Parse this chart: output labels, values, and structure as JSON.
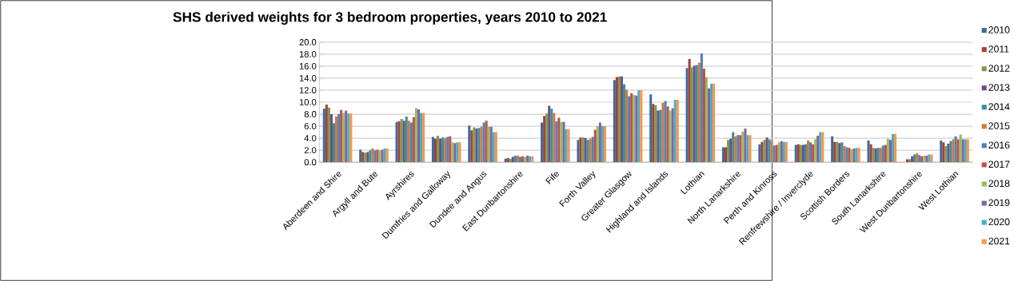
{
  "chart_data": {
    "type": "bar",
    "title": "SHS derived weights for 3 bedroom properties, years 2010 to 2021",
    "categories": [
      "Aberdeen and Shire",
      "Argyll and Bute",
      "Ayrshires",
      "Dumfries and Galloway",
      "Dundee and Angus",
      "East Dunbartonshire",
      "Fife",
      "Forth Valley",
      "Greater Glasgow",
      "Highland and Islands",
      "Lothian",
      "North Lanarkshire",
      "Perth and Kinross",
      "Renfrewshire / Inverclyde",
      "Scottish Borders",
      "South Lanarkshire",
      "West Dunbartonshire",
      "West Lothian"
    ],
    "series": [
      {
        "name": "2010",
        "color": "#3d6aa0",
        "values": [
          8.9,
          2.1,
          6.7,
          4.2,
          6.1,
          0.6,
          6.6,
          3.7,
          13.7,
          11.3,
          15.7,
          2.5,
          3.0,
          2.9,
          4.3,
          3.6,
          null,
          3.6
        ]
      },
      {
        "name": "2011",
        "color": "#a33f3c",
        "values": [
          9.6,
          1.7,
          6.8,
          3.9,
          5.3,
          0.7,
          7.7,
          4.1,
          14.2,
          9.7,
          17.2,
          2.5,
          3.4,
          3.0,
          3.4,
          3.0,
          0.5,
          3.3
        ]
      },
      {
        "name": "2012",
        "color": "#7f9a48",
        "values": [
          9.1,
          1.6,
          7.2,
          4.4,
          5.8,
          0.6,
          8.1,
          4.1,
          14.3,
          9.5,
          15.8,
          3.7,
          3.7,
          2.9,
          3.4,
          2.4,
          0.5,
          2.7
        ]
      },
      {
        "name": "2013",
        "color": "#695185",
        "values": [
          8.0,
          1.7,
          6.9,
          3.9,
          5.6,
          0.9,
          9.4,
          4.0,
          14.3,
          8.6,
          16.1,
          3.9,
          4.1,
          2.9,
          3.2,
          2.3,
          1.0,
          3.1
        ]
      },
      {
        "name": "2014",
        "color": "#3c8da3",
        "values": [
          6.5,
          2.0,
          7.6,
          4.1,
          5.7,
          1.1,
          8.9,
          3.7,
          13.0,
          8.7,
          16.2,
          5.0,
          3.8,
          3.0,
          3.3,
          2.4,
          1.3,
          3.5
        ]
      },
      {
        "name": "2015",
        "color": "#cc7b38",
        "values": [
          7.6,
          2.3,
          6.9,
          4.0,
          5.9,
          1.1,
          8.2,
          3.9,
          12.1,
          9.9,
          16.6,
          4.3,
          3.5,
          3.6,
          2.7,
          2.4,
          1.5,
          3.8
        ]
      },
      {
        "name": "2016",
        "color": "#4f81bd",
        "values": [
          8.0,
          2.0,
          6.6,
          4.2,
          6.6,
          0.9,
          6.8,
          4.2,
          11.0,
          10.2,
          18.1,
          4.5,
          2.8,
          3.3,
          2.5,
          2.8,
          1.2,
          4.3
        ]
      },
      {
        "name": "2017",
        "color": "#c0504d",
        "values": [
          8.7,
          2.1,
          7.5,
          4.3,
          6.9,
          1.0,
          7.4,
          5.4,
          11.5,
          9.3,
          15.6,
          4.5,
          2.9,
          3.0,
          2.4,
          2.9,
          1.0,
          3.8
        ]
      },
      {
        "name": "2018",
        "color": "#9bbb59",
        "values": [
          8.2,
          2.0,
          9.0,
          3.3,
          5.9,
          0.9,
          6.7,
          6.0,
          11.2,
          8.6,
          14.2,
          5.1,
          3.3,
          3.8,
          2.2,
          3.9,
          1.1,
          4.6
        ]
      },
      {
        "name": "2019",
        "color": "#8064a2",
        "values": [
          8.6,
          2.1,
          8.8,
          3.2,
          5.9,
          1.1,
          6.7,
          6.6,
          11.1,
          9.0,
          12.3,
          5.6,
          3.5,
          4.4,
          2.3,
          3.7,
          1.1,
          3.8
        ]
      },
      {
        "name": "2020",
        "color": "#4bacc6",
        "values": [
          8.1,
          2.3,
          8.2,
          3.3,
          5.0,
          1.0,
          5.5,
          6.0,
          12.0,
          10.4,
          13.1,
          4.5,
          3.4,
          5.0,
          2.4,
          4.7,
          1.3,
          3.8
        ]
      },
      {
        "name": "2021",
        "color": "#f79646",
        "values": [
          8.1,
          2.3,
          8.2,
          3.3,
          5.0,
          1.0,
          5.5,
          6.0,
          12.0,
          10.4,
          13.1,
          4.5,
          3.4,
          5.0,
          2.4,
          4.7,
          1.3,
          3.8
        ]
      }
    ],
    "ylim": [
      0,
      20
    ],
    "yticks": [
      {
        "value": 0,
        "label": "0.0"
      },
      {
        "value": 2,
        "label": "2.0"
      },
      {
        "value": 4,
        "label": "4.0"
      },
      {
        "value": 6,
        "label": "6.0"
      },
      {
        "value": 8,
        "label": "8.0"
      },
      {
        "value": 10,
        "label": "10.0"
      },
      {
        "value": 12,
        "label": "12.0"
      },
      {
        "value": 14,
        "label": "14.0"
      },
      {
        "value": 16,
        "label": "16.0"
      },
      {
        "value": 18,
        "label": "18.0"
      },
      {
        "value": 20,
        "label": "20.0"
      }
    ],
    "grid": "y",
    "legend": "right"
  }
}
